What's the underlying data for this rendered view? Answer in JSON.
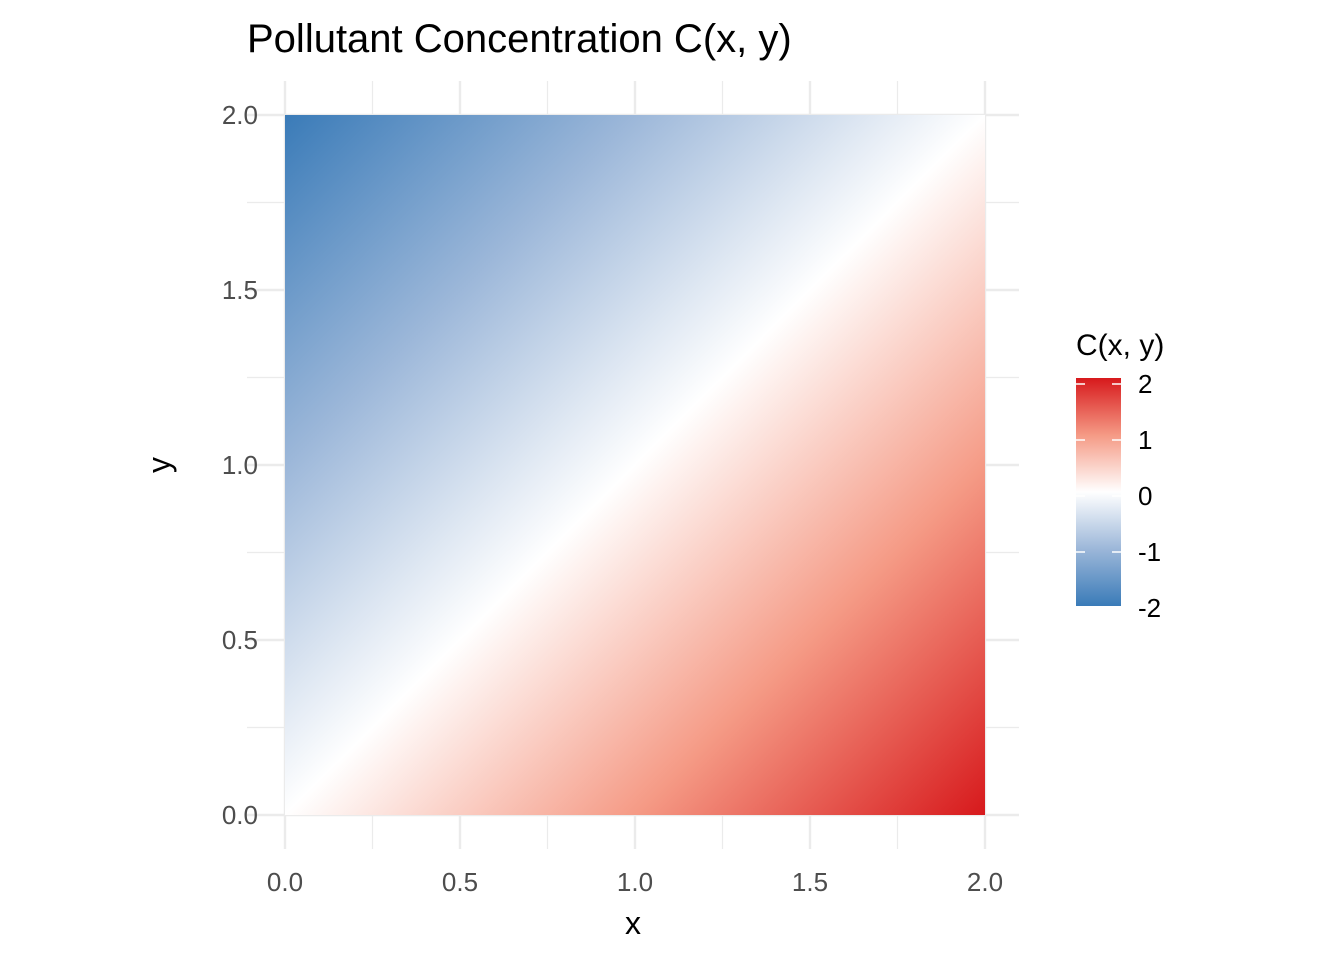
{
  "chart_data": {
    "type": "heatmap",
    "title": "Pollutant Concentration C(x, y)",
    "xlabel": "x",
    "ylabel": "y",
    "xlim": [
      0,
      2
    ],
    "ylim": [
      0,
      2
    ],
    "x_ticks": [
      "0.0",
      "0.5",
      "1.0",
      "1.5",
      "2.0"
    ],
    "y_ticks": [
      "0.0",
      "0.5",
      "1.0",
      "1.5",
      "2.0"
    ],
    "function": "C(x, y) = x - y",
    "grid": true,
    "legend": {
      "title": "C(x, y)",
      "placement": "right",
      "ticks": [
        "2",
        "1",
        "0",
        "-1",
        "-2"
      ],
      "range": [
        -2,
        2
      ]
    },
    "colors": {
      "low": "#3a7bb8",
      "mid": "#ffffff",
      "high": "#d7191c",
      "grid": "#ebebeb"
    }
  }
}
